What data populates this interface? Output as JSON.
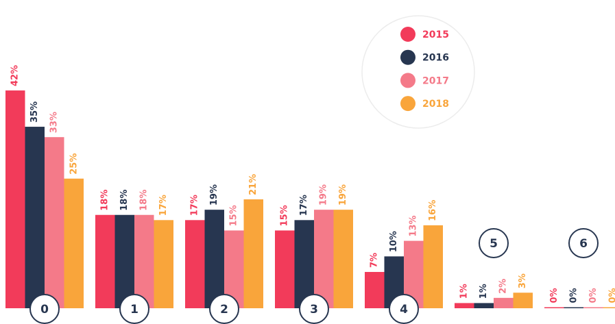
{
  "chart_data": {
    "type": "bar",
    "categories": [
      "0",
      "1",
      "2",
      "3",
      "4",
      "5",
      "6"
    ],
    "series": [
      {
        "name": "2015",
        "color": "#f23b5a",
        "values": [
          42,
          18,
          17,
          15,
          7,
          1,
          0
        ],
        "value_labels": [
          "42%",
          "18%",
          "17%",
          "15%",
          "7%",
          "1%",
          "0%"
        ]
      },
      {
        "name": "2016",
        "color": "#273650",
        "values": [
          35,
          18,
          19,
          17,
          10,
          1,
          0
        ],
        "value_labels": [
          "35%",
          "18%",
          "19%",
          "17%",
          "10%",
          "1%",
          "0%"
        ]
      },
      {
        "name": "2017",
        "color": "#f47a89",
        "values": [
          33,
          18,
          15,
          19,
          13,
          2,
          0
        ],
        "value_labels": [
          "33%",
          "18%",
          "15%",
          "19%",
          "13%",
          "2%",
          "0%"
        ]
      },
      {
        "name": "2018",
        "color": "#f9a53b",
        "values": [
          25,
          17,
          21,
          19,
          16,
          3,
          0
        ],
        "value_labels": [
          "25%",
          "17%",
          "21%",
          "19%",
          "16%",
          "3%",
          "0%"
        ]
      }
    ],
    "legend": "top-right"
  }
}
